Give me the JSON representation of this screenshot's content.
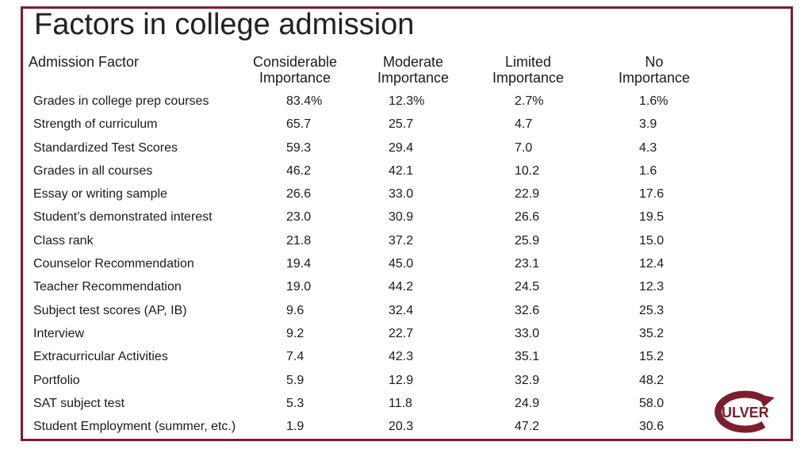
{
  "title": "Factors in college admission",
  "headers": {
    "factor": "Admission Factor",
    "considerable": [
      "Considerable",
      "Importance"
    ],
    "moderate": [
      "Moderate",
      "Importance"
    ],
    "limited": [
      "Limited",
      "Importance"
    ],
    "none": [
      "No",
      "Importance"
    ]
  },
  "rows": [
    {
      "factor": "Grades in college prep courses",
      "considerable": "83.4%",
      "moderate": "12.3%",
      "limited": "2.7%",
      "none": "1.6%"
    },
    {
      "factor": "Strength of curriculum",
      "considerable": "65.7",
      "moderate": "25.7",
      "limited": "4.7",
      "none": "3.9"
    },
    {
      "factor": "Standardized Test Scores",
      "considerable": "59.3",
      "moderate": "29.4",
      "limited": "7.0",
      "none": "4.3"
    },
    {
      "factor": "Grades in all courses",
      "considerable": "46.2",
      "moderate": "42.1",
      "limited": "10.2",
      "none": "1.6"
    },
    {
      "factor": "Essay or writing sample",
      "considerable": "26.6",
      "moderate": "33.0",
      "limited": "22.9",
      "none": "17.6"
    },
    {
      "factor": "Student’s demonstrated interest",
      "considerable": "23.0",
      "moderate": "30.9",
      "limited": "26.6",
      "none": "19.5"
    },
    {
      "factor": "Class rank",
      "considerable": "21.8",
      "moderate": "37.2",
      "limited": "25.9",
      "none": "15.0"
    },
    {
      "factor": "Counselor Recommendation",
      "considerable": "19.4",
      "moderate": "45.0",
      "limited": "23.1",
      "none": "12.4"
    },
    {
      "factor": "Teacher Recommendation",
      "considerable": "19.0",
      "moderate": "44.2",
      "limited": "24.5",
      "none": "12.3"
    },
    {
      "factor": "Subject test scores (AP, IB)",
      "considerable": "9.6",
      "moderate": "32.4",
      "limited": "32.6",
      "none": "25.3"
    },
    {
      "factor": "Interview",
      "considerable": "9.2",
      "moderate": "22.7",
      "limited": "33.0",
      "none": "35.2"
    },
    {
      "factor": "Extracurricular Activities",
      "considerable": "7.4",
      "moderate": "42.3",
      "limited": "35.1",
      "none": "15.2"
    },
    {
      "factor": "Portfolio",
      "considerable": "5.9",
      "moderate": "12.9",
      "limited": "32.9",
      "none": "48.2"
    },
    {
      "factor": "SAT subject test",
      "considerable": "5.3",
      "moderate": "11.8",
      "limited": "24.9",
      "none": "58.0"
    },
    {
      "factor": "Student Employment (summer, etc.)",
      "considerable": "1.9",
      "moderate": "20.3",
      "limited": "47.2",
      "none": "30.6"
    }
  ],
  "logo": {
    "text": "ULVER",
    "color": "#7a1f2b"
  },
  "colors": {
    "frame": "#7a1f2b",
    "text": "#1a1a1a"
  }
}
